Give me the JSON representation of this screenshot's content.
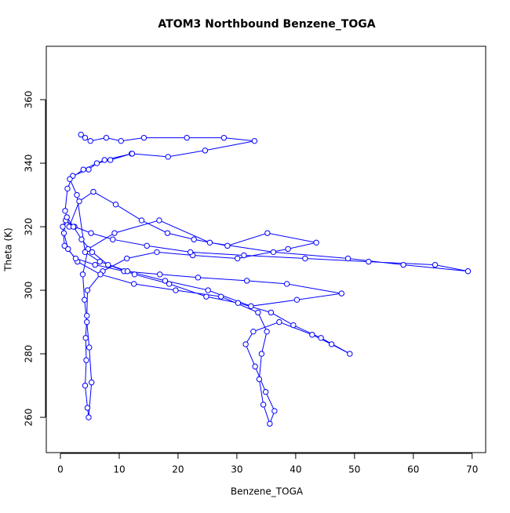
{
  "chart_data": {
    "type": "line",
    "markers": true,
    "title": "ATOM3 Northbound Benzene_TOGA",
    "x_label": "Benzene_TOGA",
    "y_label": "Theta (K)",
    "xlim": [
      -2.4,
      72.3
    ],
    "ylim": [
      248.9,
      376.8
    ],
    "xticks": [
      0,
      10,
      20,
      30,
      40,
      50,
      60,
      70
    ],
    "yticks": [
      260,
      280,
      300,
      320,
      340,
      360
    ],
    "series": [
      {
        "color": "#0000ff",
        "x": [
          3.5,
          4.2,
          5.1,
          7.8,
          10.3,
          14.2,
          21.5,
          27.8,
          33.0,
          24.6,
          18.3,
          12.1,
          8.5,
          6.2,
          4.8,
          2.1,
          1.2,
          0.8,
          1.5,
          3.2,
          5.6,
          9.4,
          13.8,
          18.2,
          22.7,
          28.4,
          35.2,
          43.5,
          38.7,
          30.1,
          22.5,
          16.4,
          11.3,
          7.2,
          4.6,
          4.5,
          4.3,
          4.4,
          4.2,
          4.6,
          4.8,
          5.3,
          4.9,
          4.5,
          4.1,
          3.8,
          4.7,
          9.2,
          16.8,
          25.4,
          36.2,
          48.9,
          58.3,
          69.3,
          63.7,
          52.4,
          41.6,
          31.2,
          22.1,
          14.7,
          8.9,
          5.2,
          2.4,
          0.9,
          0.6,
          1.3,
          2.9,
          6.8,
          12.5,
          19.6,
          27.3,
          33.6,
          35.1,
          34.2,
          33.8,
          34.5,
          35.6,
          36.4,
          34.9,
          33.1,
          31.5,
          32.8,
          37.2,
          42.8,
          46.1,
          49.2,
          44.3,
          39.6,
          35.8,
          30.2,
          24.8,
          18.5,
          12.6,
          8.1,
          5.4,
          3.6,
          2.2,
          1.1,
          0.4,
          0.7,
          2.6,
          5.9,
          10.8,
          16.9,
          23.4,
          31.7,
          38.5,
          47.8,
          40.2,
          32.4,
          25.1,
          17.8,
          11.4,
          6.7,
          4.2,
          2.8,
          1.6,
          3.9,
          7.5,
          12.2
        ],
        "values": [
          349,
          348,
          347,
          348,
          347,
          348,
          348,
          348,
          347,
          344,
          342,
          343,
          341,
          340,
          338,
          336,
          332,
          325,
          320,
          328,
          331,
          327,
          322,
          318,
          316,
          314,
          318,
          315,
          313,
          310,
          311,
          312,
          310,
          306,
          300,
          292,
          285,
          278,
          270,
          263,
          260,
          271,
          282,
          290,
          297,
          305,
          313,
          318,
          322,
          315,
          312,
          310,
          308,
          306,
          308,
          309,
          310,
          311,
          312,
          314,
          316,
          318,
          320,
          322,
          318,
          313,
          309,
          305,
          302,
          300,
          298,
          293,
          287,
          280,
          272,
          264,
          258,
          262,
          268,
          276,
          283,
          287,
          290,
          286,
          283,
          280,
          285,
          289,
          293,
          296,
          298,
          302,
          305,
          308,
          312,
          316,
          320,
          323,
          320,
          314,
          310,
          308,
          306,
          305,
          304,
          303,
          302,
          299,
          297,
          295,
          300,
          303,
          306,
          309,
          312,
          330,
          335,
          338,
          341,
          343
        ]
      }
    ]
  }
}
